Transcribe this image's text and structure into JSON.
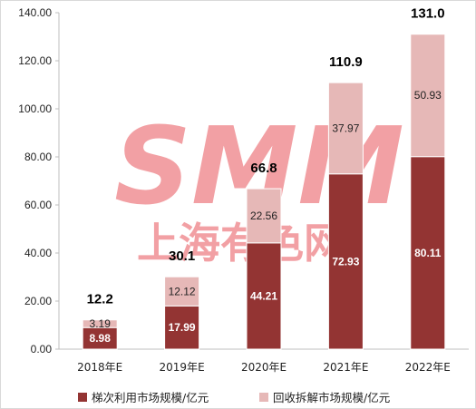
{
  "colors": {
    "series_a": "#933433",
    "series_b": "#e6b8b7",
    "watermark": "#e8545a",
    "grid": "#d9d9d9"
  },
  "watermark": {
    "logo_text": "SMM",
    "cn_text": "上海有色网"
  },
  "chart_data": {
    "type": "bar",
    "stacked": true,
    "categories": [
      "2018年E",
      "2019年E",
      "2020年E",
      "2021年E",
      "2022年E"
    ],
    "series": [
      {
        "name": "梯次利用市场规模/亿元",
        "values": [
          8.98,
          17.99,
          44.21,
          72.93,
          80.11
        ],
        "value_labels": [
          "8.98",
          "17.99",
          "44.21",
          "72.93",
          "80.11"
        ]
      },
      {
        "name": "回收拆解市场规模/亿元",
        "values": [
          3.19,
          12.12,
          22.56,
          37.97,
          50.93
        ],
        "value_labels": [
          "3.19",
          "12.12",
          "22.56",
          "37.97",
          "50.93"
        ]
      }
    ],
    "totals": [
      12.2,
      30.1,
      66.8,
      110.9,
      131.0
    ],
    "total_labels": [
      "12.2",
      "30.1",
      "66.8",
      "110.9",
      "131.0"
    ],
    "ylim": [
      0,
      140
    ],
    "yticks": [
      "0.00",
      "20.00",
      "40.00",
      "60.00",
      "80.00",
      "100.00",
      "120.00",
      "140.00"
    ],
    "legend_position": "bottom",
    "grid": false
  }
}
